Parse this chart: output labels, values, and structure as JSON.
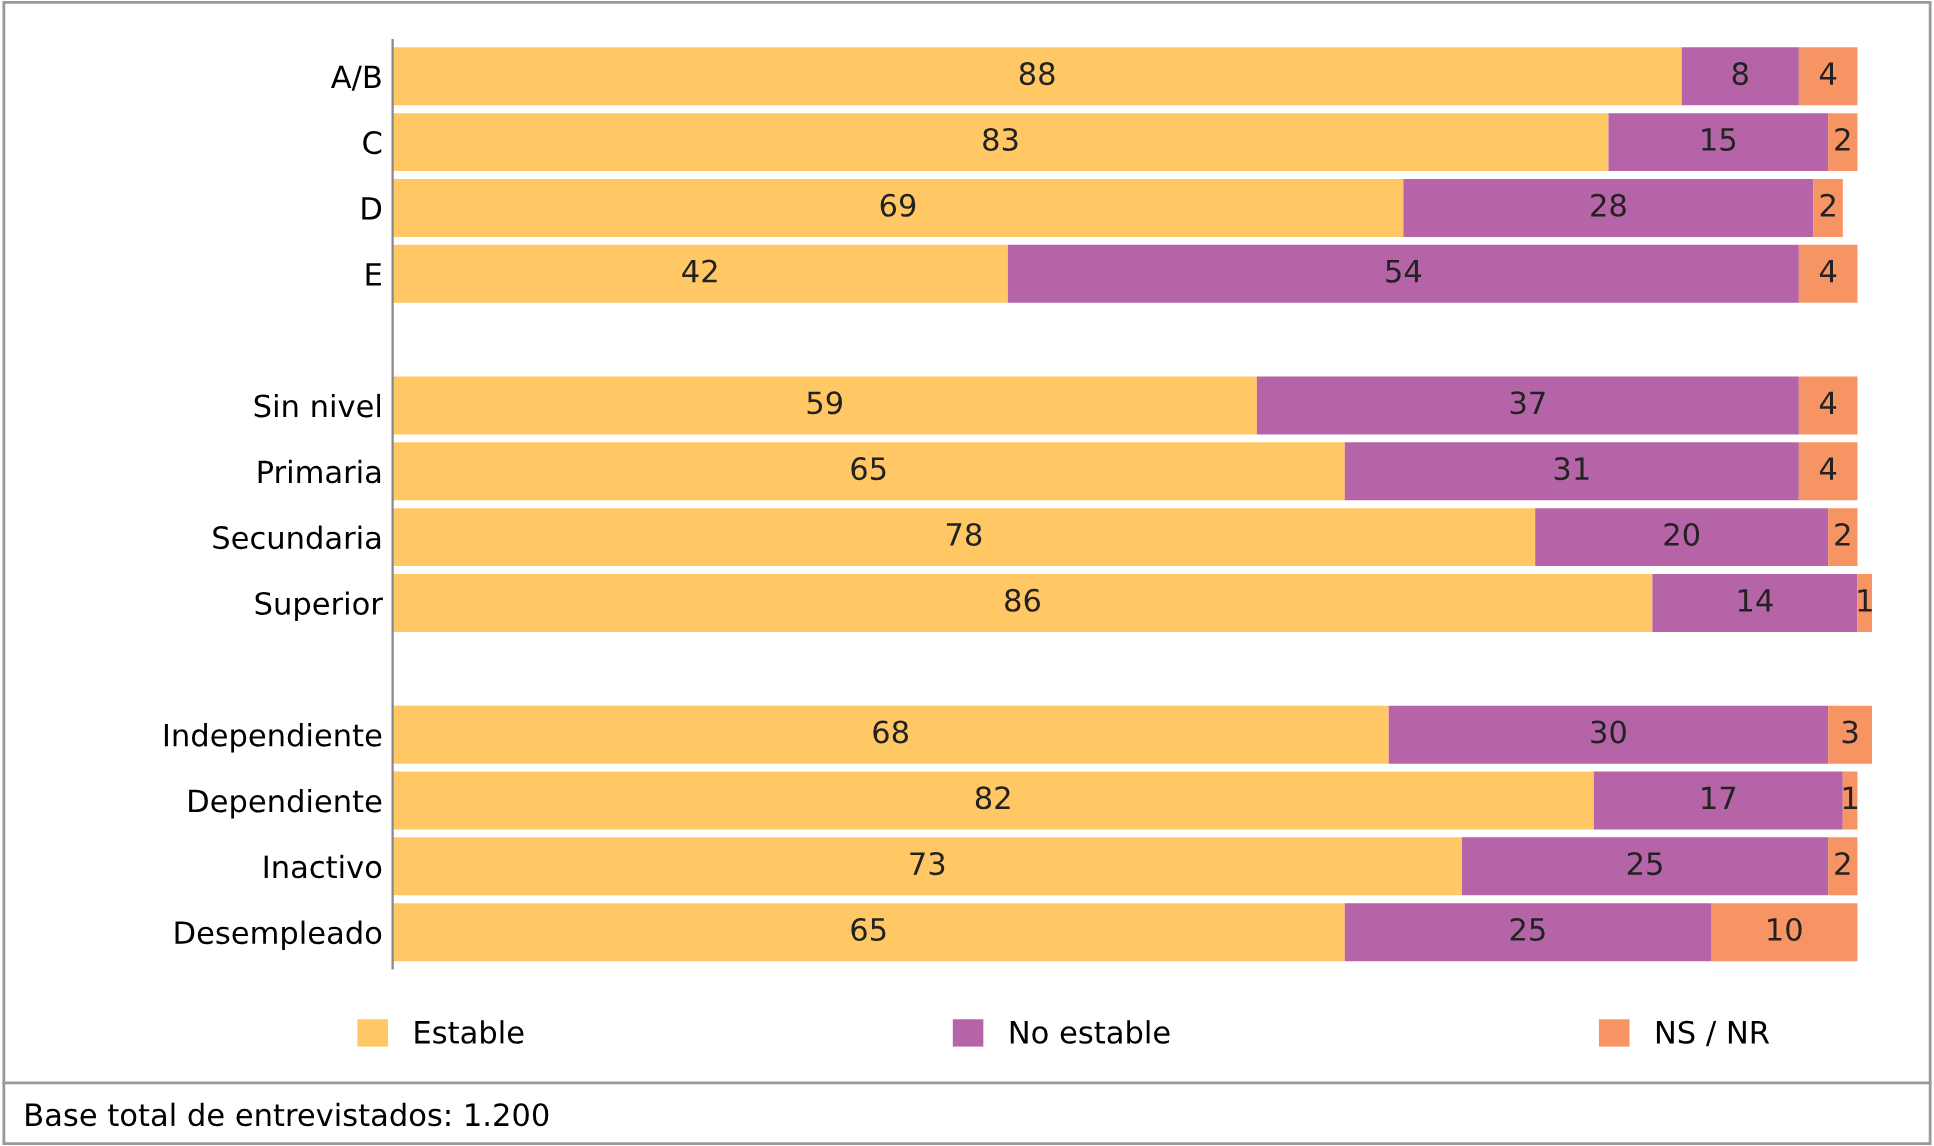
{
  "chart_data": {
    "type": "bar",
    "orientation": "horizontal",
    "stacked": true,
    "data_labels": true,
    "grid": false,
    "legend": "bottom",
    "categories": [
      "A/B",
      "C",
      "D",
      "E",
      null,
      "Sin nivel",
      "Primaria",
      "Secundaria",
      "Superior",
      null,
      "Independiente",
      "Dependiente",
      "Inactivo",
      "Desempleado"
    ],
    "series": [
      {
        "name": "Estable",
        "color": "#ffc864",
        "values": [
          88,
          83,
          69,
          42,
          null,
          59,
          65,
          78,
          86,
          null,
          68,
          82,
          73,
          65
        ]
      },
      {
        "name": "No estable",
        "color": "#b565a7",
        "values": [
          8,
          15,
          28,
          54,
          null,
          37,
          31,
          20,
          14,
          null,
          30,
          17,
          25,
          25
        ]
      },
      {
        "name": "NS / NR",
        "color": "#f79464",
        "values": [
          4,
          2,
          2,
          4,
          null,
          4,
          4,
          2,
          1,
          null,
          3,
          1,
          2,
          10
        ]
      }
    ],
    "annotations": [
      "Base total de entrevistados: 1.200"
    ]
  }
}
